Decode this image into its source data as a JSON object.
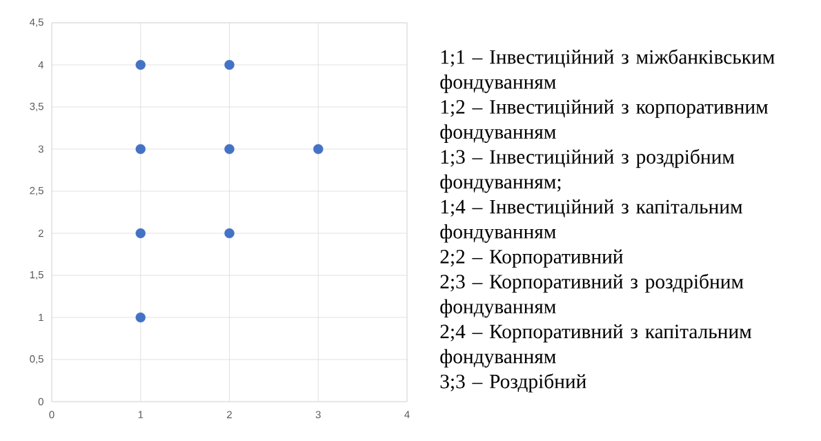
{
  "chart_data": {
    "type": "scatter",
    "x": [
      1,
      1,
      1,
      1,
      2,
      2,
      2,
      3
    ],
    "values": [
      1,
      2,
      3,
      4,
      2,
      3,
      4,
      3
    ],
    "color": "#4472c4",
    "grid": true,
    "xlim": [
      0,
      4
    ],
    "ylim": [
      0,
      4.5
    ],
    "xticks": [
      0,
      1,
      2,
      3,
      4
    ],
    "yticks": [
      0,
      {
        "value": 0.5,
        "label": "0,5"
      },
      1,
      {
        "value": 1.5,
        "label": "1,5"
      },
      2,
      {
        "value": 2.5,
        "label": "2,5"
      },
      3,
      {
        "value": 3.5,
        "label": "3,5"
      },
      4,
      {
        "value": 4.5,
        "label": "4,5"
      }
    ],
    "annotations": [
      "1;1 – Інвестиційний з міжбанківським фондуванням",
      "1;2 – Інвестиційний з корпоративним фондуванням",
      "1;3 – Інвестиційний з роздрібним фондуванням;",
      "1;4 – Інвестиційний з капітальним фондуванням",
      "2;2 – Корпоративний",
      "2;3 – Корпоративний з роздрібним фондуванням",
      "2;4 – Корпоративний з капітальним фондуванням",
      "3;3 – Роздрібний"
    ]
  }
}
